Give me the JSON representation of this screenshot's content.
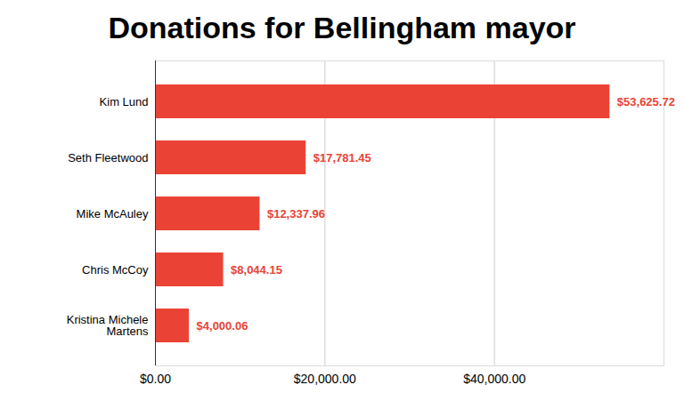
{
  "chart_data": {
    "type": "bar",
    "title": "Donations for Bellingham mayor",
    "orientation": "horizontal",
    "categories": [
      "Kim Lund",
      "Seth Fleetwood",
      "Mike McAuley",
      "Chris McCoy",
      "Kristina Michele Martens"
    ],
    "values": [
      53625.72,
      17781.45,
      12337.96,
      8044.15,
      4000.06
    ],
    "value_labels": [
      "$53,625.72",
      "$17,781.45",
      "$12,337.96",
      "$8,044.15",
      "$4,000.06"
    ],
    "data_labels": true,
    "color": "#ea4335",
    "xlim": [
      0,
      60000
    ],
    "xticks": [
      {
        "value": 0,
        "label": "$0.00"
      },
      {
        "value": 20000,
        "label": "$20,000.00"
      },
      {
        "value": 40000,
        "label": "$40,000.00"
      }
    ],
    "grid": true
  }
}
